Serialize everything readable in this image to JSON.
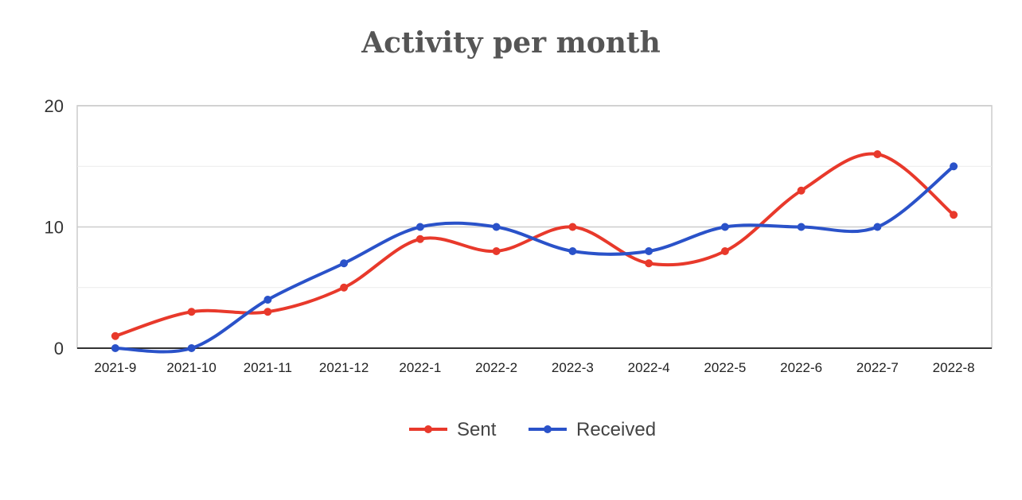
{
  "chart_data": {
    "type": "line",
    "title": "Activity per month",
    "xlabel": "",
    "ylabel": "",
    "categories": [
      "2021-9",
      "2021-10",
      "2021-11",
      "2021-12",
      "2022-1",
      "2022-2",
      "2022-3",
      "2022-4",
      "2022-5",
      "2022-6",
      "2022-7",
      "2022-8"
    ],
    "ylim": [
      0,
      20
    ],
    "yticks": [
      "0",
      "10",
      "20"
    ],
    "grid": true,
    "smooth": true,
    "legend_position": "bottom",
    "series": [
      {
        "name": "Sent",
        "color": "#e8392b",
        "values": [
          1,
          3,
          3,
          5,
          9,
          8,
          10,
          7,
          8,
          13,
          16,
          11
        ]
      },
      {
        "name": "Received",
        "color": "#2a52c9",
        "values": [
          0,
          0,
          4,
          7,
          10,
          10,
          8,
          8,
          10,
          10,
          10,
          15
        ]
      }
    ]
  }
}
